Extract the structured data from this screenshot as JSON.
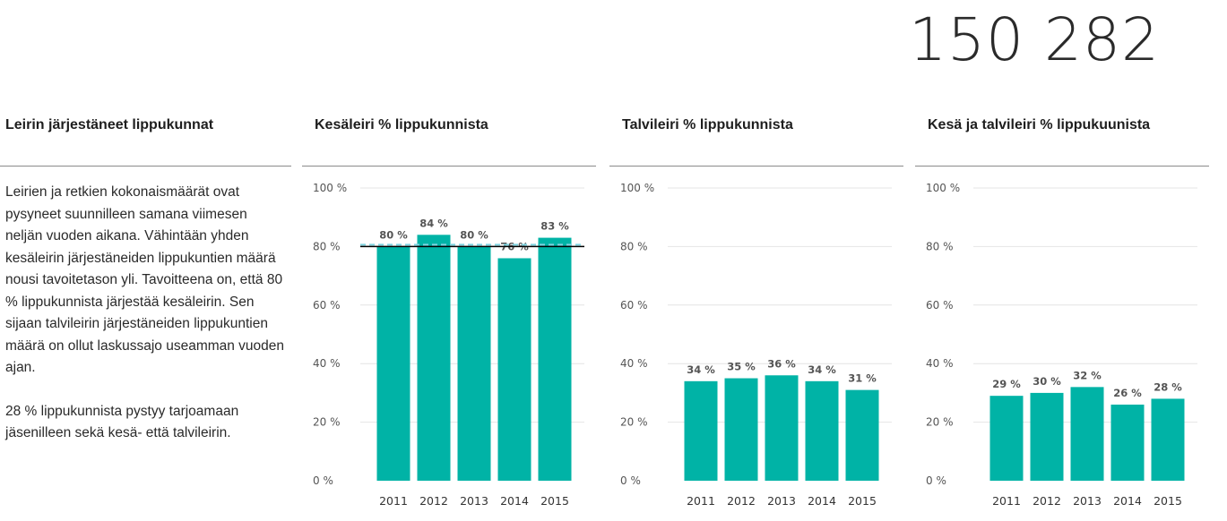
{
  "big_number": "150 282",
  "intro": {
    "heading": "Leirin järjestäneet lippukunnat",
    "paragraph_1": "Leirien ja retkien kokonaismäärät ovat pysyneet suunnilleen samana viimesen neljän vuoden aikana. Vähintään yhden kesäleirin järjestäneiden lippukuntien määrä nousi tavoitetason yli. Tavoitteena on, että 80 % lippukunnista järjestää kesäleirin. Sen sijaan talvileirin järjestäneiden lippukuntien määrä on ollut laskussajo useamman vuoden ajan.",
    "paragraph_2": "28 % lippukunnista pystyy tarjoamaan jäsenilleen sekä kesä- että talvileirin."
  },
  "colors": {
    "bar": "#00b3a6",
    "target_line": "#000000",
    "target_dash": "#7fd3e0",
    "grid": "#e4e4e4"
  },
  "chart_data": [
    {
      "type": "bar",
      "title": "Kesäleiri % lippukunnista",
      "categories": [
        "2011",
        "2012",
        "2013",
        "2014",
        "2015"
      ],
      "values": [
        80,
        84,
        80,
        76,
        83
      ],
      "labels": [
        "80 %",
        "84 %",
        "80 %",
        "76 %",
        "83 %"
      ],
      "yticks": [
        "0 %",
        "20 %",
        "40 %",
        "60 %",
        "80 %",
        "100 %"
      ],
      "ylim": [
        0,
        100
      ],
      "target": 80,
      "grid": true
    },
    {
      "type": "bar",
      "title": "Talvileiri % lippukunnista",
      "categories": [
        "2011",
        "2012",
        "2013",
        "2014",
        "2015"
      ],
      "values": [
        34,
        35,
        36,
        34,
        31
      ],
      "labels": [
        "34 %",
        "35 %",
        "36 %",
        "34 %",
        "31 %"
      ],
      "yticks": [
        "0 %",
        "20 %",
        "40 %",
        "60 %",
        "80 %",
        "100 %"
      ],
      "ylim": [
        0,
        100
      ],
      "grid": true
    },
    {
      "type": "bar",
      "title": "Kesä ja talvileiri % lippukuunista",
      "categories": [
        "2011",
        "2012",
        "2013",
        "2014",
        "2015"
      ],
      "values": [
        29,
        30,
        32,
        26,
        28
      ],
      "labels": [
        "29 %",
        "30 %",
        "32 %",
        "26 %",
        "28 %"
      ],
      "yticks": [
        "0 %",
        "20 %",
        "40 %",
        "60 %",
        "80 %",
        "100 %"
      ],
      "ylim": [
        0,
        100
      ],
      "grid": true
    }
  ]
}
